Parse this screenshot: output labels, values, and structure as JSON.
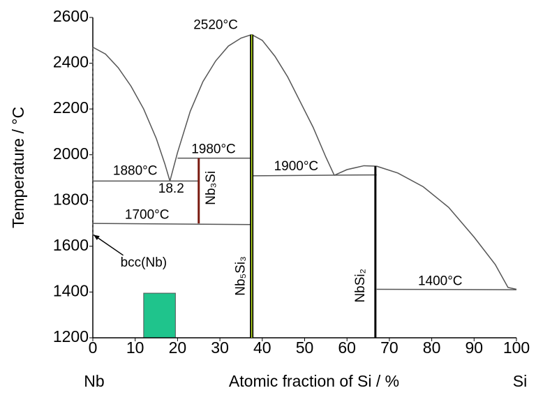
{
  "chart_data": {
    "type": "line",
    "x_label": "Atomic fraction of Si / %",
    "y_label": "Temperature / °C",
    "x_end_labels": [
      "Nb",
      "Si"
    ],
    "xlim": [
      0,
      100
    ],
    "ylim": [
      1200,
      2600
    ],
    "xticks": [
      0,
      10,
      20,
      30,
      40,
      50,
      60,
      70,
      80,
      90,
      100
    ],
    "yticks": [
      1200,
      1400,
      1600,
      1800,
      2000,
      2200,
      2400,
      2600
    ],
    "series": [
      {
        "color": "#555555",
        "x": [
          0,
          3,
          6,
          9,
          12,
          15,
          17,
          18.2
        ],
        "values": [
          2470,
          2440,
          2380,
          2300,
          2200,
          2070,
          1960,
          1885
        ]
      },
      {
        "color": "#555555",
        "x": [
          18.2,
          20,
          23,
          26,
          29,
          32,
          35,
          37.5
        ],
        "values": [
          1885,
          2010,
          2190,
          2320,
          2410,
          2475,
          2510,
          2525
        ]
      },
      {
        "color": "#555555",
        "x": [
          37.5,
          40,
          43,
          46,
          49,
          52,
          55,
          57
        ],
        "values": [
          2525,
          2500,
          2430,
          2340,
          2230,
          2120,
          1990,
          1910
        ]
      },
      {
        "color": "#555555",
        "x": [
          57,
          60,
          64,
          67
        ],
        "values": [
          1910,
          1935,
          1952,
          1950
        ]
      },
      {
        "color": "#555555",
        "x": [
          67,
          72,
          78,
          84,
          90,
          95,
          98,
          100
        ],
        "values": [
          1950,
          1920,
          1860,
          1770,
          1640,
          1520,
          1420,
          1412
        ]
      },
      {
        "color": "#555555",
        "x": [
          0,
          25
        ],
        "values": [
          1885,
          1885
        ]
      },
      {
        "color": "#555555",
        "x": [
          20,
          37.5
        ],
        "values": [
          1985,
          1985
        ]
      },
      {
        "color": "#555555",
        "x": [
          0,
          37.5
        ],
        "values": [
          1700,
          1695
        ]
      },
      {
        "color": "#555555",
        "x": [
          37.5,
          67
        ],
        "values": [
          1908,
          1912
        ]
      },
      {
        "color": "#555555",
        "x": [
          67,
          100
        ],
        "values": [
          1412,
          1410
        ]
      },
      {
        "color": "#555555",
        "dashed": true,
        "x": [
          0,
          0
        ],
        "values": [
          1650,
          2470
        ]
      },
      {
        "color": "#7a1a10",
        "compound": true,
        "x": [
          25,
          25
        ],
        "values": [
          1700,
          1985
        ]
      },
      {
        "color": "#000000",
        "inner_color": "#c6ef1e",
        "compound": true,
        "x": [
          37.5,
          37.5
        ],
        "values": [
          1200,
          2525
        ]
      },
      {
        "color": "#000000",
        "compound": true,
        "x": [
          66.7,
          66.7
        ],
        "values": [
          1200,
          1950
        ]
      }
    ],
    "regions": [
      {
        "color": "#1fc48c",
        "x": [
          12,
          19.5
        ],
        "y": [
          1200,
          1395
        ]
      }
    ],
    "annotations": [
      {
        "text": "2520°C",
        "x": 29,
        "y": 2565
      },
      {
        "text": "1980°C",
        "x": 28.5,
        "y": 2022
      },
      {
        "text": "1880°C",
        "x": 10,
        "y": 1928
      },
      {
        "text": "18.2",
        "x": 18.5,
        "y": 1850
      },
      {
        "text": "1700°C",
        "x": 12.8,
        "y": 1735
      },
      {
        "text": "1900°C",
        "x": 48,
        "y": 1948
      },
      {
        "text": "1400°C",
        "x": 82,
        "y": 1445
      },
      {
        "text": "bcc(Nb)",
        "x": 12,
        "y": 1527,
        "arrow_to": [
          0,
          1650
        ]
      },
      {
        "text": "Nb₃Si",
        "x": 28,
        "y": 1855,
        "rotate": -90
      },
      {
        "text": "Nb₅Si₃",
        "x": 35,
        "y": 1470,
        "rotate": -90
      },
      {
        "text": "NbSi₂",
        "x": 63.3,
        "y": 1428,
        "rotate": -90
      }
    ]
  }
}
